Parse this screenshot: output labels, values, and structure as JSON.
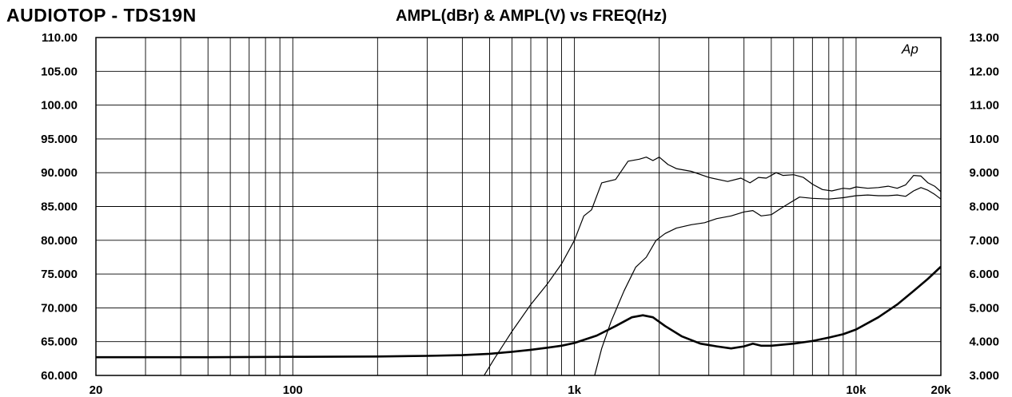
{
  "header": {
    "brand": "AUDIOTOP - TDS19N",
    "title": "AMPL(dBr) & AMPL(V) vs FREQ(Hz)"
  },
  "watermark": "Ap",
  "chart_data": {
    "type": "line",
    "x_scale": "log",
    "xlim": [
      20,
      20000
    ],
    "x_ticks": [
      {
        "value": 20,
        "label": "20"
      },
      {
        "value": 100,
        "label": "100"
      },
      {
        "value": 1000,
        "label": "1k"
      },
      {
        "value": 10000,
        "label": "10k"
      },
      {
        "value": 20000,
        "label": "20k"
      }
    ],
    "ylim_left": [
      60,
      110
    ],
    "y_left_ticks": [
      "60.000",
      "65.000",
      "70.000",
      "75.000",
      "80.000",
      "85.000",
      "90.000",
      "95.000",
      "100.00",
      "105.00",
      "110.00"
    ],
    "ylim_right": [
      3,
      13
    ],
    "y_right_ticks": [
      "3.000",
      "4.000",
      "5.000",
      "6.000",
      "7.000",
      "8.000",
      "9.000",
      "10.00",
      "11.00",
      "12.00",
      "13.00"
    ],
    "grid": true,
    "series": [
      {
        "axis": "left",
        "stroke": "#000000",
        "weight": "thin",
        "x": [
          470,
          520,
          600,
          700,
          800,
          900,
          1000,
          1080,
          1150,
          1250,
          1400,
          1550,
          1700,
          1800,
          1900,
          2000,
          2150,
          2300,
          2600,
          3000,
          3500,
          3900,
          4200,
          4500,
          4800,
          5200,
          5500,
          6000,
          6500,
          7000,
          7600,
          8200,
          9000,
          9500,
          10000,
          11000,
          12000,
          13000,
          14000,
          15000,
          16000,
          17000,
          18000,
          19000,
          20000
        ],
        "y": [
          59.5,
          62.5,
          66.5,
          70.5,
          73.5,
          76.5,
          80,
          83.6,
          84.5,
          88.5,
          89,
          91.7,
          92,
          92.3,
          91.8,
          92.3,
          91.2,
          90.6,
          90.2,
          89.3,
          88.7,
          89.2,
          88.5,
          89.3,
          89.2,
          90,
          89.6,
          89.7,
          89.3,
          88.3,
          87.5,
          87.3,
          87.7,
          87.6,
          87.9,
          87.7,
          87.8,
          88,
          87.7,
          88.2,
          89.6,
          89.5,
          88.5,
          88,
          87.2
        ]
      },
      {
        "axis": "left",
        "stroke": "#000000",
        "weight": "thin",
        "x": [
          1180,
          1250,
          1350,
          1500,
          1650,
          1800,
          1950,
          2100,
          2300,
          2600,
          2900,
          3200,
          3600,
          4000,
          4300,
          4600,
          5000,
          5400,
          5800,
          6300,
          7000,
          8000,
          9000,
          10000,
          11000,
          12000,
          13000,
          14000,
          15000,
          16000,
          17000,
          18000,
          19000,
          20000
        ],
        "y": [
          60,
          64,
          68,
          72.5,
          76,
          77.5,
          80,
          81,
          81.8,
          82.3,
          82.6,
          83.2,
          83.6,
          84.2,
          84.4,
          83.6,
          83.8,
          84.7,
          85.5,
          86.4,
          86.2,
          86.1,
          86.3,
          86.6,
          86.7,
          86.6,
          86.6,
          86.7,
          86.5,
          87.3,
          87.8,
          87.4,
          86.8,
          86.1
        ]
      },
      {
        "axis": "left",
        "stroke": "#000000",
        "weight": "thick",
        "x": [
          20,
          50,
          100,
          200,
          300,
          400,
          500,
          600,
          700,
          800,
          900,
          1000,
          1200,
          1400,
          1600,
          1750,
          1900,
          2100,
          2400,
          2800,
          3200,
          3600,
          4000,
          4300,
          4600,
          5000,
          6000,
          7000,
          8000,
          9000,
          10000,
          12000,
          14000,
          16000,
          18000,
          20000
        ],
        "y": [
          62.7,
          62.7,
          62.75,
          62.8,
          62.9,
          63.0,
          63.2,
          63.5,
          63.8,
          64.1,
          64.4,
          64.8,
          65.9,
          67.3,
          68.6,
          68.9,
          68.6,
          67.3,
          65.8,
          64.7,
          64.3,
          64.0,
          64.3,
          64.7,
          64.4,
          64.4,
          64.7,
          65.1,
          65.6,
          66.1,
          66.8,
          68.6,
          70.5,
          72.5,
          74.3,
          76.1
        ]
      }
    ]
  }
}
